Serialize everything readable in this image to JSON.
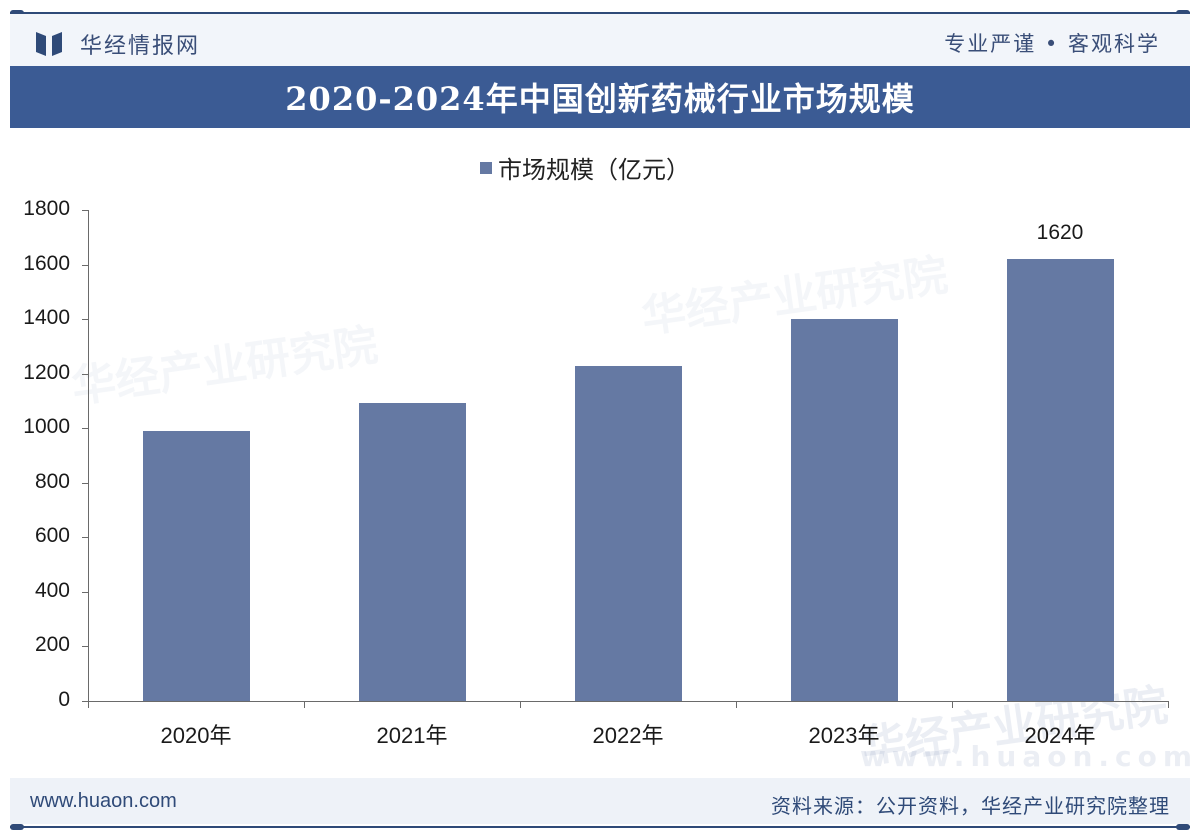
{
  "header": {
    "logo_text": "华经情报网",
    "slogan": "专业严谨 • 客观科学"
  },
  "title": "2020-2024年中国创新药械行业市场规模",
  "legend": {
    "label": "市场规模（亿元）",
    "color": "#6579a3"
  },
  "footer": {
    "url": "www.huaon.com",
    "source": "资料来源：公开资料，华经产业研究院整理"
  },
  "watermarks": [
    "华经产业研究院",
    "华经产业研究院",
    "华经产业研究院",
    "www.huaon.com"
  ],
  "chart_data": {
    "type": "bar",
    "title": "2020-2024年中国创新药械行业市场规模",
    "categories": [
      "2020年",
      "2021年",
      "2022年",
      "2023年",
      "2024年"
    ],
    "series": [
      {
        "name": "市场规模（亿元）",
        "values": [
          990,
          1093,
          1228,
          1400,
          1620
        ],
        "color": "#6579a3"
      }
    ],
    "data_labels": [
      null,
      null,
      null,
      null,
      "1620"
    ],
    "xlabel": "",
    "ylabel": "",
    "ylim": [
      0,
      1800
    ],
    "yticks": [
      "0",
      "200",
      "400",
      "600",
      "800",
      "1000",
      "1200",
      "1400",
      "1600",
      "1800"
    ],
    "grid": false,
    "legend_position": "top"
  }
}
